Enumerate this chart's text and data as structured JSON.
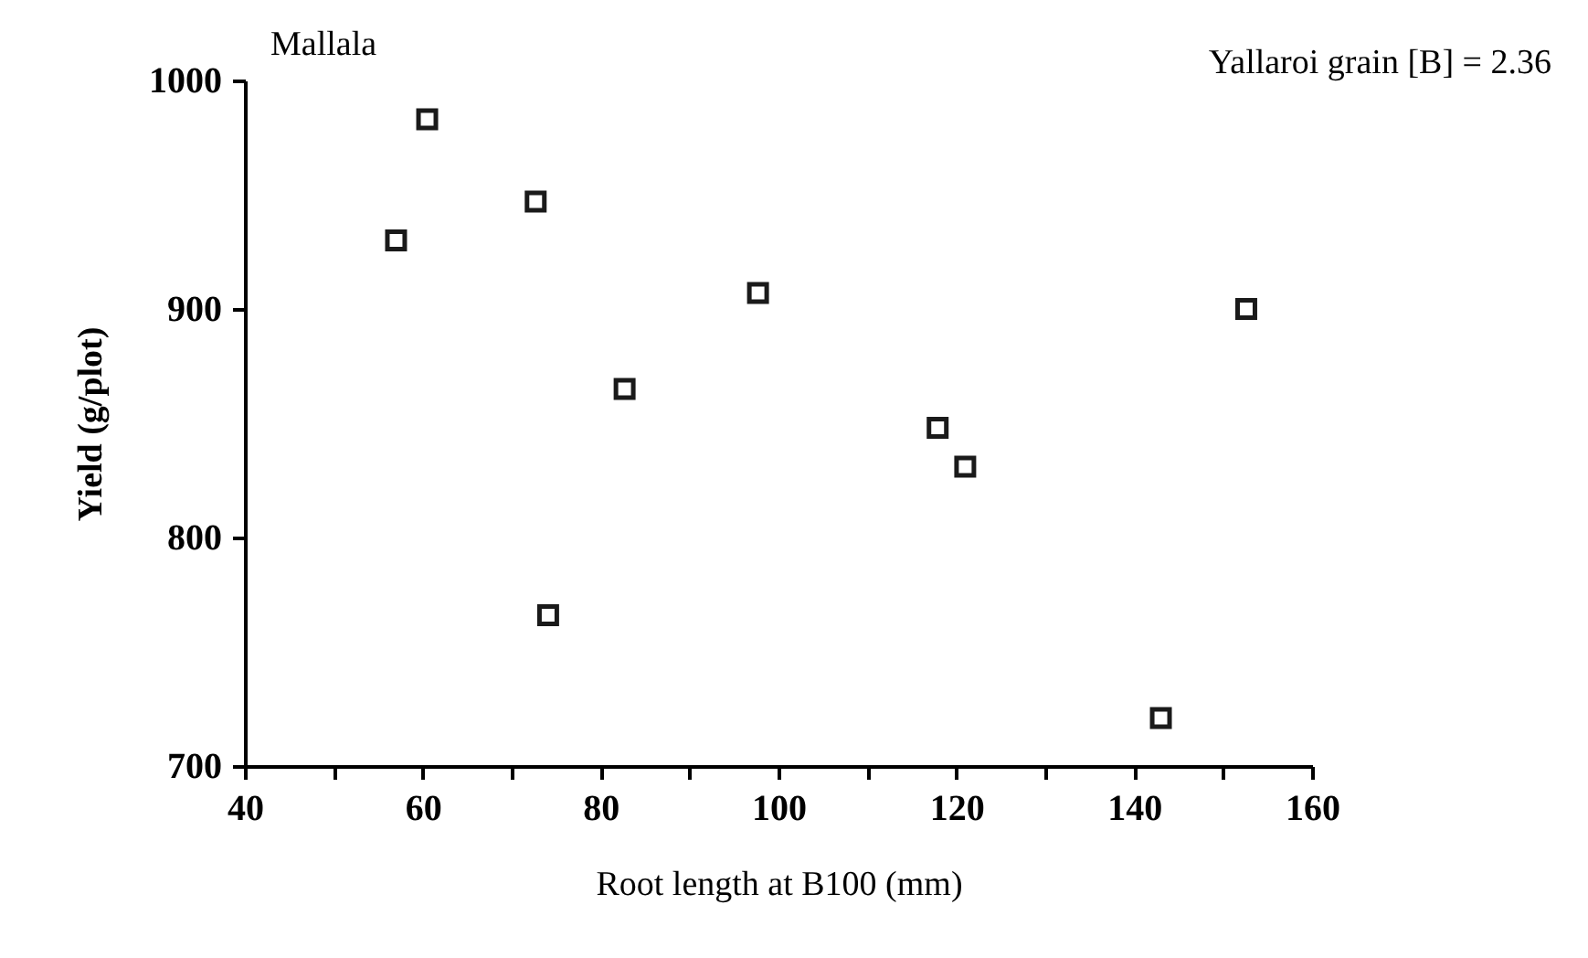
{
  "chart_data": {
    "type": "scatter",
    "xlabel": "Root length at B100 (mm)",
    "ylabel": "Yield (g/plot)",
    "annotations": [
      "Mallala",
      "Yallaroi grain [B] = 2.36"
    ],
    "x": [
      57,
      60.5,
      72.7,
      74.1,
      82.7,
      97.7,
      117.9,
      121,
      143,
      152.6
    ],
    "series": [
      {
        "color": "#1a1a1a",
        "values": [
          930,
          983,
          947,
          766,
          865,
          907,
          848,
          831,
          721,
          900
        ]
      }
    ],
    "xlim": [
      40,
      160
    ],
    "xticks": [
      40,
      {
        "value": 50,
        "label": null
      },
      60,
      {
        "value": 70,
        "label": null
      },
      80,
      {
        "value": 90,
        "label": null
      },
      100,
      {
        "value": 110,
        "label": null
      },
      120,
      {
        "value": 130,
        "label": null
      },
      140,
      {
        "value": 150,
        "label": null
      },
      160
    ],
    "ylim": [
      700,
      1000
    ],
    "yticks": [
      700,
      800,
      900,
      1000
    ],
    "marker": "square",
    "grid": false,
    "legend": false
  }
}
